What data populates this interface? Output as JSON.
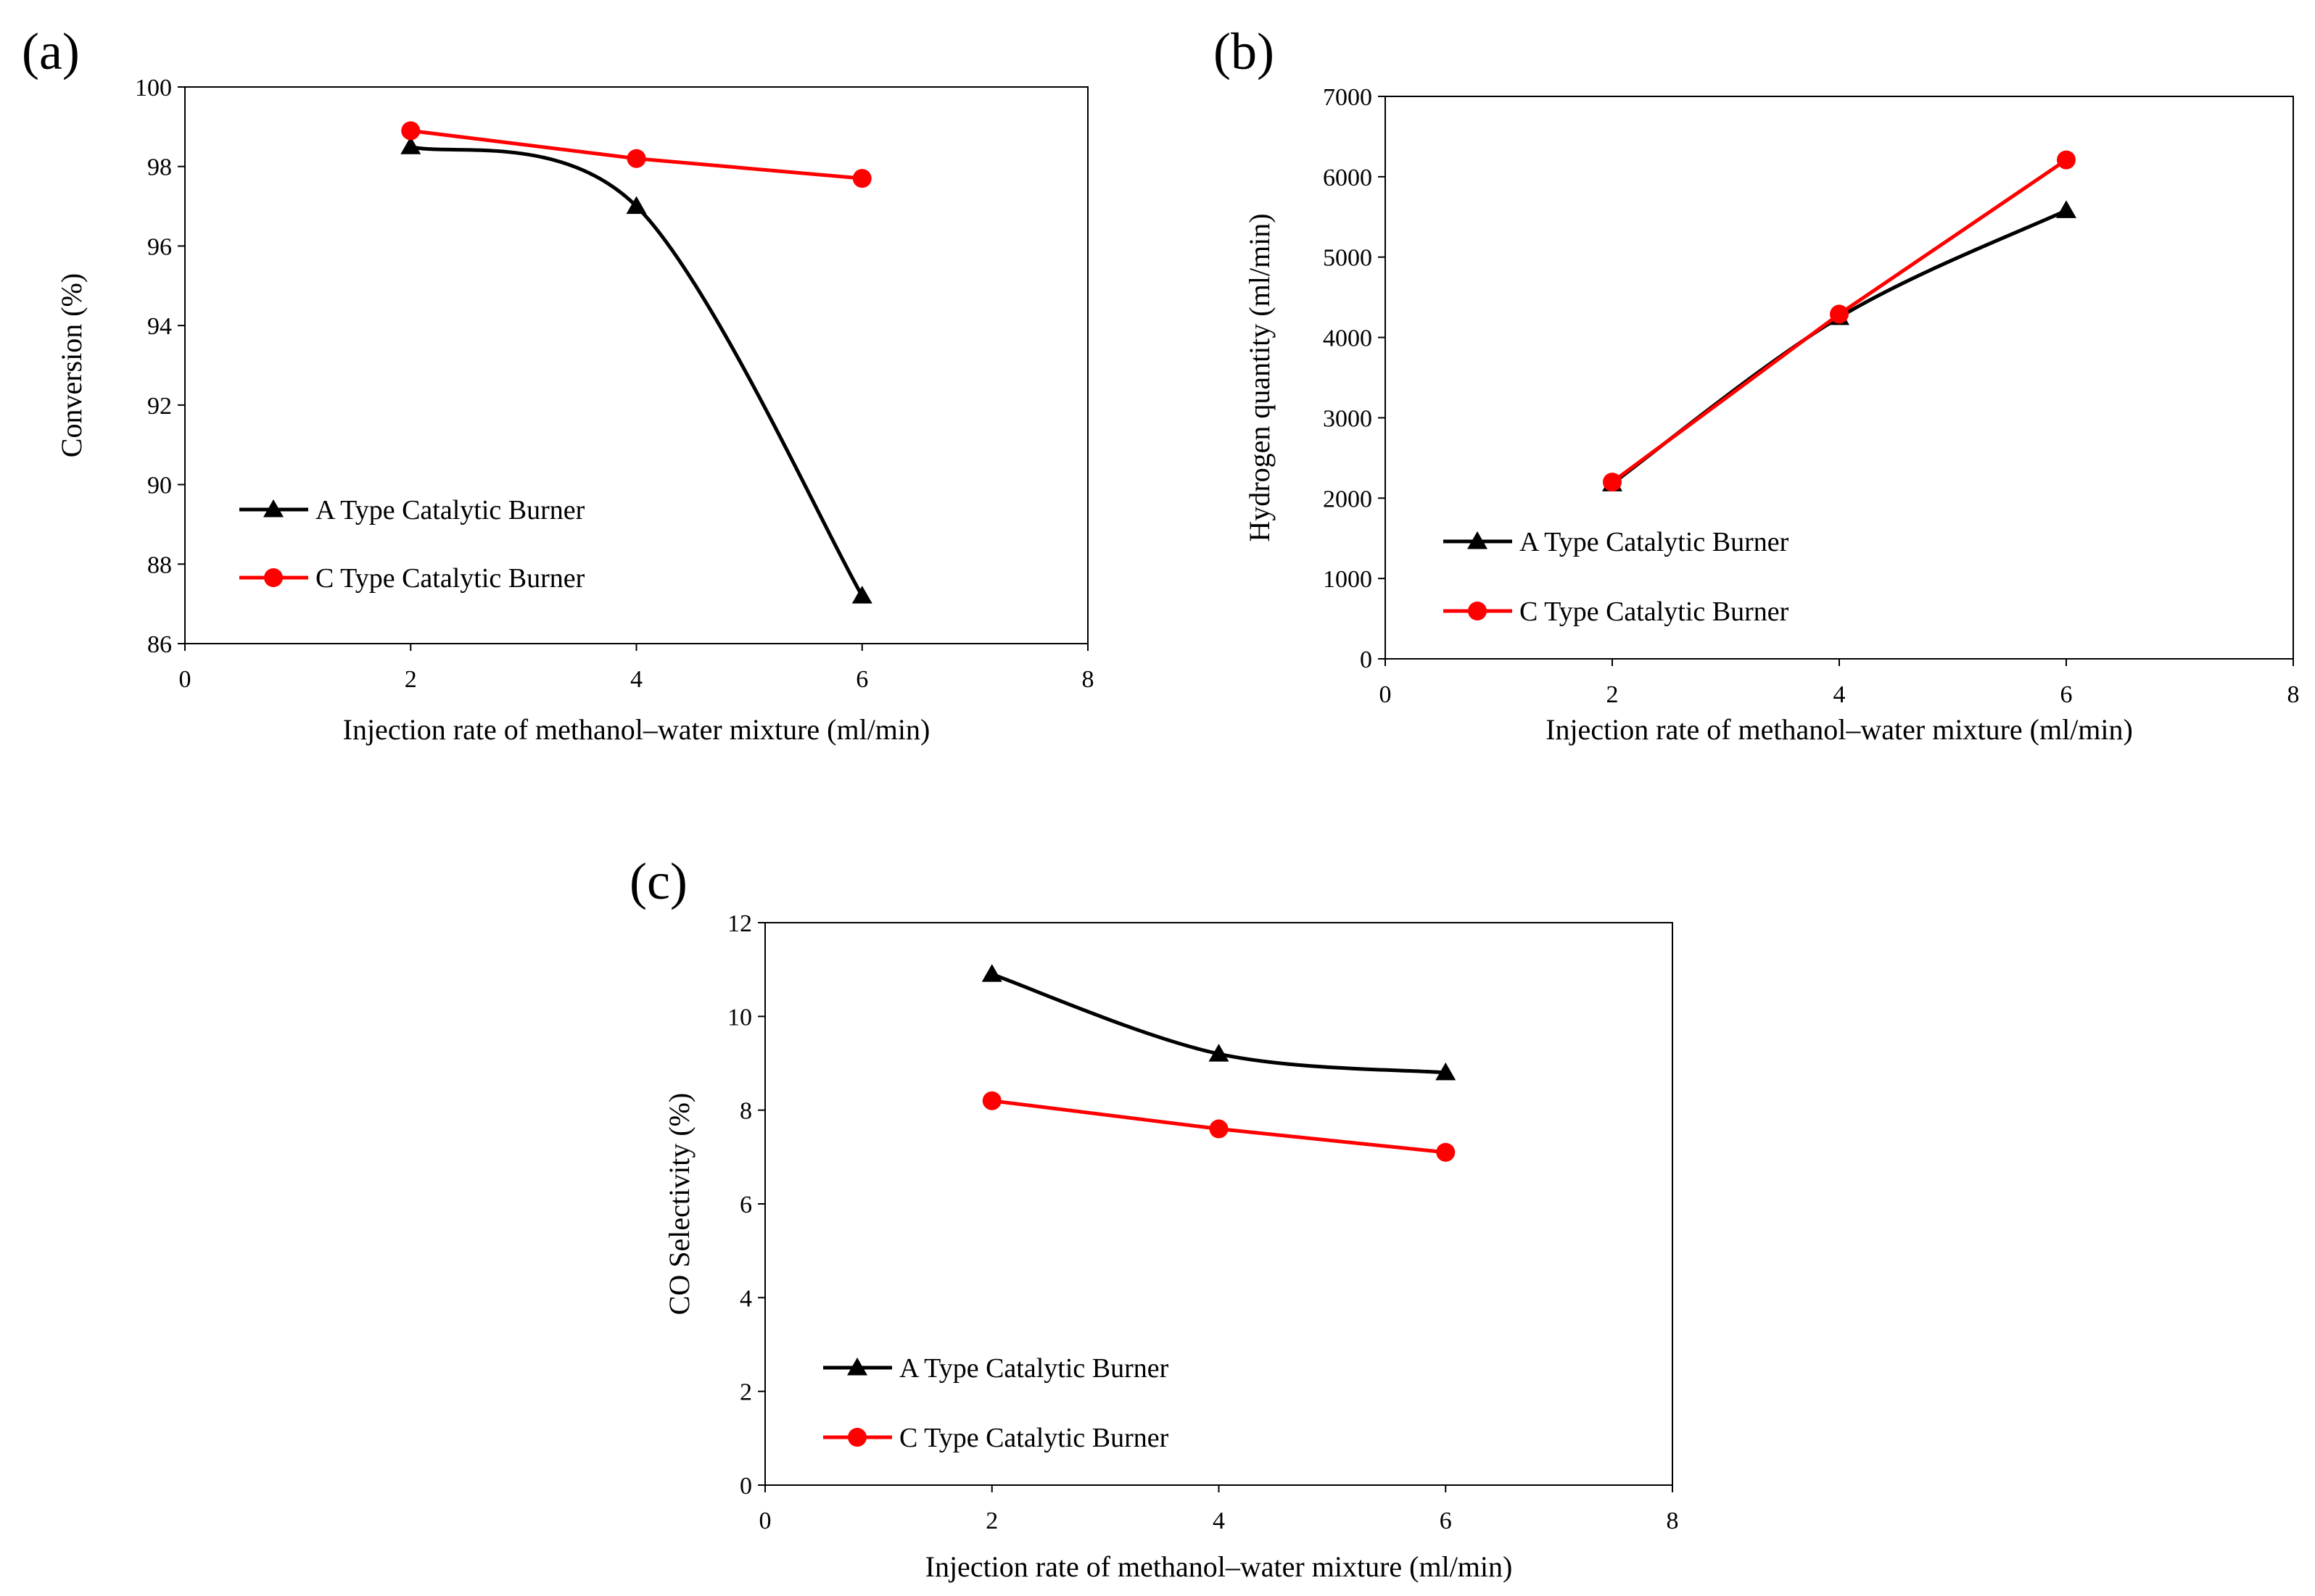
{
  "figure": {
    "colors": {
      "series_a": "#000000",
      "series_c": "#ff0000"
    }
  },
  "chart_data": [
    {
      "panel_label": "(a)",
      "type": "line",
      "title": "",
      "xlabel": "Injection rate of methanol–water mixture (ml/min)",
      "ylabel": "Conversion (%)",
      "xlim": [
        0,
        8
      ],
      "ylim": [
        86,
        100
      ],
      "xticks": [
        0,
        2,
        4,
        6,
        8
      ],
      "yticks": [
        86,
        88,
        90,
        92,
        94,
        96,
        98,
        100
      ],
      "grid": false,
      "legend_position": "lower-left",
      "series": [
        {
          "name": "A Type Catalytic Burner",
          "marker": "triangle",
          "smooth": true,
          "x": [
            2,
            4,
            6
          ],
          "values": [
            98.5,
            97.0,
            87.2
          ]
        },
        {
          "name": "C Type Catalytic Burner",
          "marker": "circle",
          "smooth": false,
          "x": [
            2,
            4,
            6
          ],
          "values": [
            98.9,
            98.2,
            97.7
          ]
        }
      ]
    },
    {
      "panel_label": "(b)",
      "type": "line",
      "title": "",
      "xlabel": "Injection rate of methanol–water mixture (ml/min)",
      "ylabel": "Hydrogen quantity (ml/min)",
      "xlim": [
        0,
        8
      ],
      "ylim": [
        0,
        7000
      ],
      "xticks": [
        0,
        2,
        4,
        6,
        8
      ],
      "yticks": [
        0,
        1000,
        2000,
        3000,
        4000,
        5000,
        6000,
        7000
      ],
      "grid": false,
      "legend_position": "lower-left",
      "series": [
        {
          "name": "A Type Catalytic Burner",
          "marker": "triangle",
          "smooth": true,
          "x": [
            2,
            4,
            6
          ],
          "values": [
            2180,
            4250,
            5580
          ]
        },
        {
          "name": "C Type Catalytic Burner",
          "marker": "circle",
          "smooth": false,
          "x": [
            2,
            4,
            6
          ],
          "values": [
            2200,
            4290,
            6210
          ]
        }
      ]
    },
    {
      "panel_label": "(c)",
      "type": "line",
      "title": "",
      "xlabel": "Injection rate of methanol–water mixture (ml/min)",
      "ylabel": "CO Selectivity (%)",
      "xlim": [
        0,
        8
      ],
      "ylim": [
        0,
        12
      ],
      "xticks": [
        0,
        2,
        4,
        6,
        8
      ],
      "yticks": [
        0,
        2,
        4,
        6,
        8,
        10,
        12
      ],
      "grid": false,
      "legend_position": "lower-left",
      "series": [
        {
          "name": "A Type Catalytic Burner",
          "marker": "triangle",
          "smooth": true,
          "x": [
            2,
            4,
            6
          ],
          "values": [
            10.9,
            9.2,
            8.8
          ]
        },
        {
          "name": "C Type Catalytic Burner",
          "marker": "circle",
          "smooth": false,
          "x": [
            2,
            4,
            6
          ],
          "values": [
            8.2,
            7.6,
            7.1
          ]
        }
      ]
    }
  ]
}
